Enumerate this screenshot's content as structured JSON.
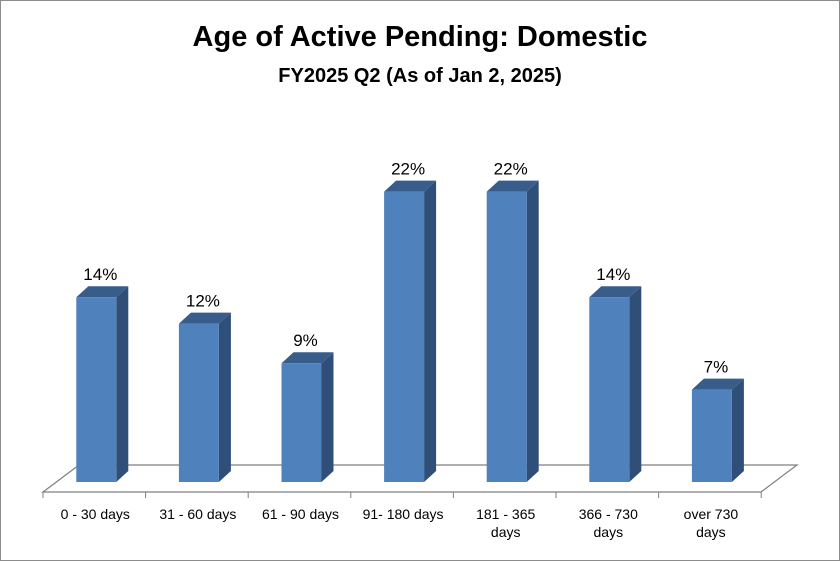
{
  "chart_data": {
    "type": "bar",
    "title": "Age of Active Pending: Domestic",
    "subtitle": "FY2025 Q2 (As of Jan 2, 2025)",
    "categories": [
      [
        "0 - 30 days"
      ],
      [
        "31 - 60 days"
      ],
      [
        "61 - 90 days"
      ],
      [
        "91- 180 days"
      ],
      [
        "181 - 365",
        "days"
      ],
      [
        "366 - 730",
        "days"
      ],
      [
        "over 730",
        "days"
      ]
    ],
    "values": [
      14,
      12,
      9,
      22,
      22,
      14,
      7
    ],
    "data_labels": [
      "14%",
      "12%",
      "9%",
      "22%",
      "22%",
      "14%",
      "7%"
    ],
    "unit": "%",
    "ylim": [
      0,
      25
    ],
    "grid": false,
    "legend": "none",
    "style": "3d-column",
    "colors": {
      "front": "#4f81bd",
      "side": "#2f4f78",
      "top": "#385d8a",
      "floor": "#7f7f7f"
    }
  }
}
